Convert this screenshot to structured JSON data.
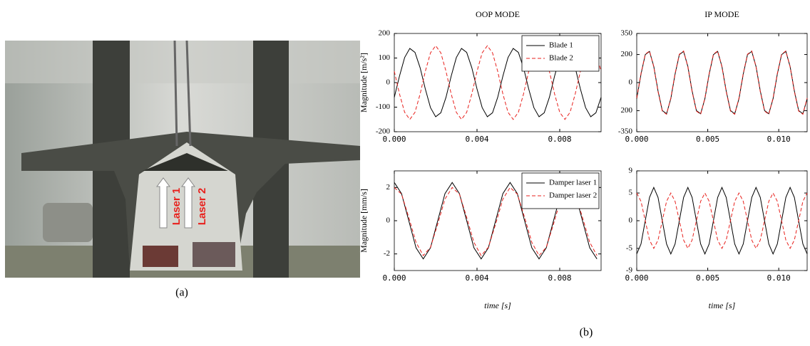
{
  "figure": {
    "photo": {
      "labels": [
        "Laser 1",
        "Laser 2"
      ],
      "caption": "(a)"
    },
    "caption": "(b)"
  },
  "chart_data": [
    {
      "type": "line",
      "title": "OOP MODE",
      "ylabel": "Magnitude [m/s²]",
      "xlim": [
        0,
        0.01
      ],
      "ylim": [
        -200,
        200
      ],
      "xticks": [
        {
          "value": 0,
          "label": "0.000"
        },
        {
          "value": 0.004,
          "label": "0.004"
        },
        {
          "value": 0.008,
          "label": "0.008"
        }
      ],
      "yticks": [
        -200,
        -100,
        0,
        100,
        200
      ],
      "legend": "upper right",
      "x": [
        0,
        0.00025,
        0.0005,
        0.00075,
        0.001,
        0.00125,
        0.0015,
        0.00175,
        0.002,
        0.00225,
        0.0025,
        0.00275,
        0.003,
        0.00325,
        0.0035,
        0.00375,
        0.004,
        0.00425,
        0.0045,
        0.00475,
        0.005,
        0.00525,
        0.0055,
        0.00575,
        0.006,
        0.00625,
        0.0065,
        0.00675,
        0.007,
        0.00725,
        0.0075,
        0.00775,
        0.008,
        0.00825,
        0.0085,
        0.00875,
        0.009,
        0.00925,
        0.0095,
        0.00975,
        0.01
      ],
      "series": [
        {
          "name": "Blade 1",
          "color": "#000000",
          "linestyle": "solid",
          "values": [
            -60,
            26,
            102,
            139,
            123,
            60,
            -26,
            -102,
            -139,
            -123,
            -60,
            26,
            102,
            139,
            123,
            60,
            -26,
            -102,
            -139,
            -123,
            -60,
            26,
            102,
            139,
            123,
            60,
            -26,
            -102,
            -139,
            -123,
            -60,
            26,
            102,
            139,
            123,
            60,
            -26,
            -102,
            -139,
            -123,
            -60
          ]
        },
        {
          "name": "Blade 2",
          "color": "#e8211d",
          "linestyle": "dashed",
          "values": [
            46,
            -46,
            -121,
            -150,
            -121,
            -46,
            46,
            121,
            150,
            121,
            46,
            -46,
            -121,
            -150,
            -121,
            -46,
            46,
            121,
            150,
            121,
            46,
            -46,
            -121,
            -150,
            -121,
            -46,
            46,
            121,
            150,
            121,
            46,
            -46,
            -121,
            -150,
            -121,
            -46,
            46,
            121,
            150,
            121,
            46
          ]
        }
      ]
    },
    {
      "type": "line",
      "title": "IP MODE",
      "xlim": [
        0,
        0.012
      ],
      "ylim": [
        -350,
        350
      ],
      "xticks": [
        {
          "value": 0,
          "label": "0.000"
        },
        {
          "value": 0.005,
          "label": "0.005"
        },
        {
          "value": 0.01,
          "label": "0.010"
        }
      ],
      "yticks": [
        -350,
        {
          "value": -200,
          "label": "200"
        },
        0,
        200,
        350
      ],
      "x": [
        0,
        0.0003,
        0.0006,
        0.0009,
        0.0012,
        0.0015,
        0.0018,
        0.0021,
        0.0024,
        0.0027,
        0.003,
        0.0033,
        0.0036,
        0.0039,
        0.0042,
        0.0045,
        0.0048,
        0.0051,
        0.0054,
        0.0057,
        0.006,
        0.0063,
        0.0066,
        0.0069,
        0.0072,
        0.0075,
        0.0078,
        0.0081,
        0.0084,
        0.0087,
        0.009,
        0.0093,
        0.0096,
        0.0099,
        0.0102,
        0.0105,
        0.0108,
        0.0111,
        0.0114,
        0.0117,
        0.012
      ],
      "series": [
        {
          "color": "#000000",
          "linestyle": "solid",
          "values": [
            -115,
            60,
            199,
            222,
            115,
            -60,
            -199,
            -222,
            -115,
            60,
            199,
            222,
            115,
            -60,
            -199,
            -222,
            -115,
            60,
            199,
            222,
            115,
            -60,
            -199,
            -222,
            -115,
            60,
            199,
            222,
            115,
            -60,
            -199,
            -222,
            -115,
            60,
            199,
            222,
            115,
            -60,
            -199,
            -222,
            -115
          ]
        },
        {
          "color": "#e8211d",
          "linestyle": "dashed",
          "values": [
            -110,
            65,
            202,
            225,
            112,
            -65,
            -203,
            -226,
            -110,
            65,
            202,
            225,
            112,
            -65,
            -203,
            -226,
            -110,
            65,
            202,
            225,
            112,
            -65,
            -203,
            -226,
            -110,
            65,
            202,
            225,
            112,
            -65,
            -203,
            -226,
            -110,
            65,
            202,
            225,
            112,
            -65,
            -203,
            -226,
            -110
          ]
        }
      ]
    },
    {
      "type": "line",
      "ylabel": "Magnitude [mm/s]",
      "xlabel": "time [s]",
      "xlim": [
        0,
        0.01
      ],
      "ylim": [
        -3,
        3
      ],
      "xticks": [
        {
          "value": 0,
          "label": "0.000"
        },
        {
          "value": 0.004,
          "label": "0.004"
        },
        {
          "value": 0.008,
          "label": "0.008"
        }
      ],
      "yticks": [
        -2,
        0,
        2
      ],
      "legend": "upper right",
      "x": [
        0,
        0.00035,
        0.0007,
        0.00105,
        0.0014,
        0.00175,
        0.0021,
        0.00245,
        0.0028,
        0.00315,
        0.0035,
        0.00385,
        0.0042,
        0.00455,
        0.0049,
        0.00525,
        0.0056,
        0.00595,
        0.0063,
        0.00665,
        0.007,
        0.00735,
        0.0077,
        0.00805,
        0.0084,
        0.00875,
        0.0091,
        0.00945,
        0.0098
      ],
      "series": [
        {
          "name": "Damper laser 1",
          "color": "#000000",
          "linestyle": "solid",
          "values": [
            2.3,
            1.63,
            0,
            -1.63,
            -2.3,
            -1.63,
            0,
            1.63,
            2.3,
            1.63,
            0,
            -1.63,
            -2.3,
            -1.63,
            0,
            1.63,
            2.3,
            1.63,
            0,
            -1.63,
            -2.3,
            -1.63,
            0,
            1.63,
            2.3,
            1.63,
            0,
            -1.63,
            -2.3
          ]
        },
        {
          "name": "Damper laser 2",
          "color": "#e8211d",
          "linestyle": "dashed",
          "values": [
            2.0,
            1.6,
            0.2,
            -1.3,
            -2.1,
            -1.6,
            -0.2,
            1.3,
            2.0,
            1.6,
            0.2,
            -1.3,
            -2.1,
            -1.6,
            -0.2,
            1.3,
            2.0,
            1.6,
            0.2,
            -1.3,
            -2.1,
            -1.6,
            -0.2,
            1.3,
            2.0,
            1.6,
            0.2,
            -1.3,
            -2.1
          ]
        }
      ]
    },
    {
      "type": "line",
      "xlabel": "time [s]",
      "xlim": [
        0,
        0.012
      ],
      "ylim": [
        -9,
        9
      ],
      "xticks": [
        {
          "value": 0,
          "label": "0.000"
        },
        {
          "value": 0.005,
          "label": "0.005"
        },
        {
          "value": 0.01,
          "label": "0.010"
        }
      ],
      "yticks": [
        -9,
        -5,
        0,
        5,
        9
      ],
      "x": [
        0,
        0.0003,
        0.0006,
        0.0009,
        0.0012,
        0.0015,
        0.0018,
        0.0021,
        0.0024,
        0.0027,
        0.003,
        0.0033,
        0.0036,
        0.0039,
        0.0042,
        0.0045,
        0.0048,
        0.0051,
        0.0054,
        0.0057,
        0.006,
        0.0063,
        0.0066,
        0.0069,
        0.0072,
        0.0075,
        0.0078,
        0.0081,
        0.0084,
        0.0087,
        0.009,
        0.0093,
        0.0096,
        0.0099,
        0.0102,
        0.0105,
        0.0108,
        0.0111,
        0.0114,
        0.0117,
        0.012
      ],
      "series": [
        {
          "color": "#000000",
          "linestyle": "solid",
          "values": [
            -6,
            -4.2,
            0,
            4.2,
            6,
            4.2,
            0,
            -4.2,
            -6,
            -4.2,
            0,
            4.2,
            6,
            4.2,
            0,
            -4.2,
            -6,
            -4.2,
            0,
            4.2,
            6,
            4.2,
            0,
            -4.2,
            -6,
            -4.2,
            0,
            4.2,
            6,
            4.2,
            0,
            -4.2,
            -6,
            -4.2,
            0,
            4.2,
            6,
            4.2,
            0,
            -4.2,
            -6
          ]
        },
        {
          "color": "#e8211d",
          "linestyle": "dashed",
          "values": [
            5,
            3.5,
            0,
            -3.5,
            -5,
            -3.5,
            0,
            3.5,
            5,
            3.5,
            0,
            -3.5,
            -5,
            -3.5,
            0,
            3.5,
            5,
            3.5,
            0,
            -3.5,
            -5,
            -3.5,
            0,
            3.5,
            5,
            3.5,
            0,
            -3.5,
            -5,
            -3.5,
            0,
            3.5,
            5,
            3.5,
            0,
            -3.5,
            -5,
            -3.5,
            0,
            3.5,
            5
          ]
        }
      ]
    }
  ]
}
